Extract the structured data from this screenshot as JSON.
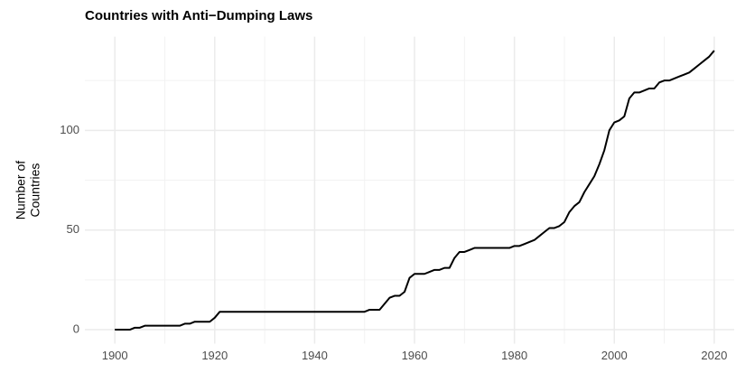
{
  "chart_data": {
    "type": "line",
    "title": "Countries with Anti−Dumping Laws",
    "ylabel_lines": [
      "Number of",
      "Countries"
    ],
    "x": [
      1900,
      1901,
      1902,
      1903,
      1904,
      1905,
      1906,
      1907,
      1908,
      1909,
      1910,
      1911,
      1912,
      1913,
      1914,
      1915,
      1916,
      1917,
      1918,
      1919,
      1920,
      1921,
      1922,
      1923,
      1924,
      1925,
      1926,
      1927,
      1928,
      1929,
      1930,
      1931,
      1932,
      1933,
      1934,
      1935,
      1936,
      1937,
      1938,
      1939,
      1940,
      1941,
      1942,
      1943,
      1944,
      1945,
      1946,
      1947,
      1948,
      1949,
      1950,
      1951,
      1952,
      1953,
      1954,
      1955,
      1956,
      1957,
      1958,
      1959,
      1960,
      1961,
      1962,
      1963,
      1964,
      1965,
      1966,
      1967,
      1968,
      1969,
      1970,
      1971,
      1972,
      1973,
      1974,
      1975,
      1976,
      1977,
      1978,
      1979,
      1980,
      1981,
      1982,
      1983,
      1984,
      1985,
      1986,
      1987,
      1988,
      1989,
      1990,
      1991,
      1992,
      1993,
      1994,
      1995,
      1996,
      1997,
      1998,
      1999,
      2000,
      2001,
      2002,
      2003,
      2004,
      2005,
      2006,
      2007,
      2008,
      2009,
      2010,
      2011,
      2012,
      2013,
      2014,
      2015,
      2016,
      2017,
      2018,
      2019,
      2020
    ],
    "values": [
      0,
      0,
      0,
      0,
      1,
      1,
      2,
      2,
      2,
      2,
      2,
      2,
      2,
      2,
      3,
      3,
      4,
      4,
      4,
      4,
      6,
      9,
      9,
      9,
      9,
      9,
      9,
      9,
      9,
      9,
      9,
      9,
      9,
      9,
      9,
      9,
      9,
      9,
      9,
      9,
      9,
      9,
      9,
      9,
      9,
      9,
      9,
      9,
      9,
      9,
      9,
      10,
      10,
      10,
      13,
      16,
      17,
      17,
      19,
      26,
      28,
      28,
      28,
      29,
      30,
      30,
      31,
      31,
      36,
      39,
      39,
      40,
      41,
      41,
      41,
      41,
      41,
      41,
      41,
      41,
      42,
      42,
      43,
      44,
      45,
      47,
      49,
      51,
      51,
      52,
      54,
      59,
      62,
      64,
      69,
      73,
      77,
      83,
      90,
      100,
      104,
      105,
      107,
      116,
      119,
      119,
      120,
      121,
      121,
      124,
      125,
      125,
      126,
      127,
      128,
      129,
      131,
      133,
      135,
      137,
      140
    ],
    "color": "#000000",
    "xlim": [
      1894,
      2024
    ],
    "xticks": [
      1900,
      1920,
      1940,
      1960,
      1980,
      2000,
      2020
    ],
    "minor_xticks": [
      1910,
      1930,
      1950,
      1970,
      1990,
      2010
    ],
    "ylim": [
      -7,
      147
    ],
    "yticks": [
      0,
      50,
      100
    ],
    "minor_yticks": [
      25,
      75,
      125
    ],
    "grid": true
  }
}
